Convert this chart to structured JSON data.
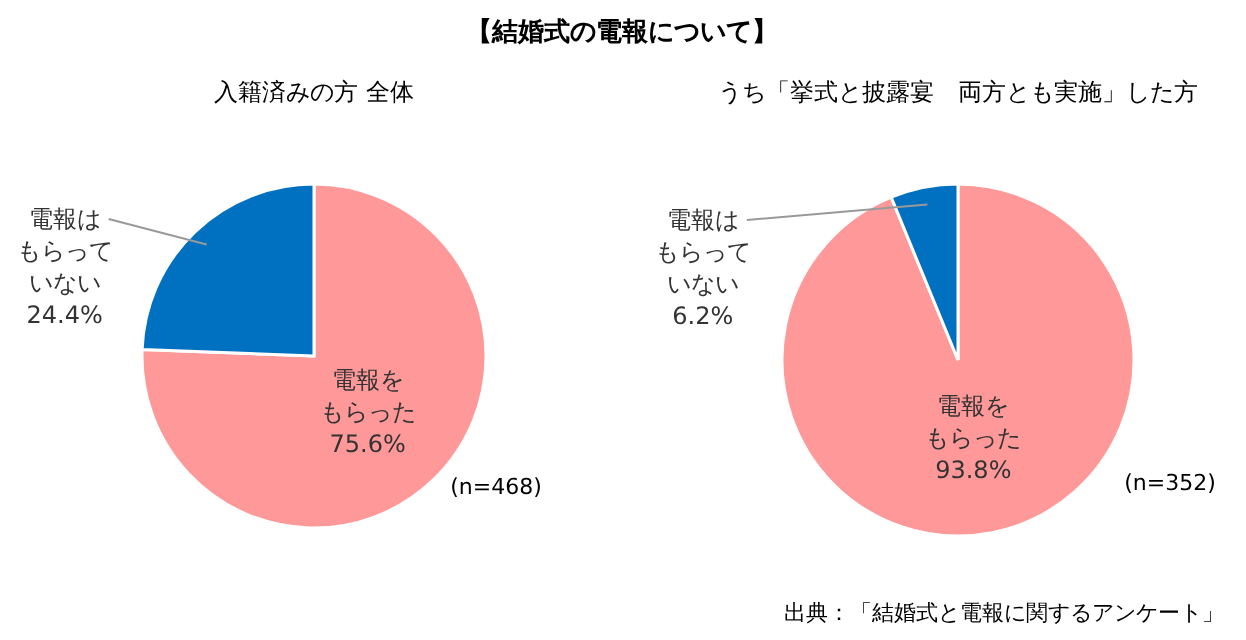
{
  "chart_data": [
    {
      "type": "pie",
      "title": "入籍済みの方 全体",
      "categories": [
        "電報をもらった",
        "電報はもらっていない"
      ],
      "values": [
        75.6,
        24.4
      ],
      "colors": [
        "#ff9999",
        "#0070c0"
      ],
      "value_labels": [
        "75.6%",
        "24.4%"
      ],
      "annotations": [
        "【結婚式の電報について】",
        "(n=468)"
      ]
    },
    {
      "type": "pie",
      "title": "うち「挙式と披露宴　両方とも実施」した方",
      "categories": [
        "電報をもらった",
        "電報はもらっていない"
      ],
      "values": [
        93.8,
        6.2
      ],
      "colors": [
        "#ff9999",
        "#0070c0"
      ],
      "value_labels": [
        "93.8%",
        "6.2%"
      ],
      "annotations": [
        "(n=352)",
        "出典：「結婚式と電報に関するアンケート」"
      ]
    }
  ]
}
